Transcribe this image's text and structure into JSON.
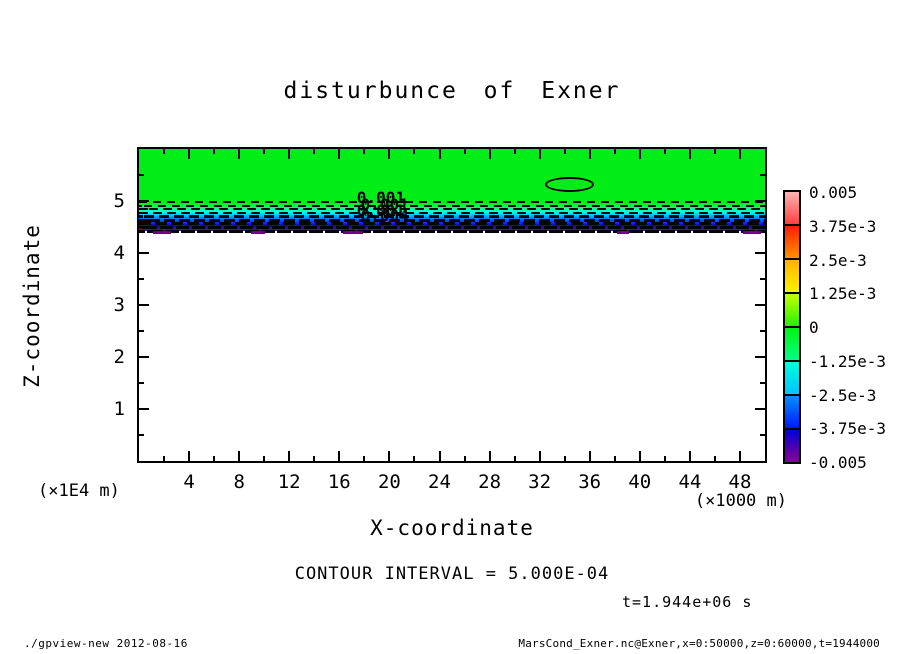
{
  "header": {
    "title": "disturbunce of Exner"
  },
  "chart_data": {
    "type": "heatmap",
    "title": "disturbunce of Exner",
    "xlabel": "X-coordinate",
    "x_units": "(×1000 m)",
    "ylabel": "Z-coordinate",
    "y_units": "(×1E4 m)",
    "xlim": [
      0,
      50
    ],
    "ylim": [
      0,
      6
    ],
    "x_major_ticks": [
      4,
      8,
      12,
      16,
      20,
      24,
      28,
      32,
      36,
      40,
      44,
      48
    ],
    "x_minor_step": 2,
    "y_major_ticks": [
      1,
      2,
      3,
      4,
      5
    ],
    "y_minor_step": 0.5,
    "grid": false,
    "annotations": {
      "contour_interval": "CONTOUR INTERVAL = 5.000E-04",
      "time": "t=1.944e+06 s",
      "contour_labels": [
        {
          "text": "0.001",
          "x": 17.4,
          "z": 5.03
        },
        {
          "text": "0.001",
          "x": 17.7,
          "z": 4.9
        },
        {
          "text": "0.001",
          "x": 17.4,
          "z": 4.78
        },
        {
          "text": "0.004",
          "x": 17.7,
          "z": 4.7
        }
      ]
    },
    "field": {
      "description": "Exner disturbance near 0 (green) for z above ~5.0; thin negative layer 4.4<z<5.0 with dashed contours descending to -0.005 (purple) at its base; unshaded (white) below z~4.4",
      "background_color": "#00ee16",
      "gradient_layer": {
        "z_top": 5.0,
        "z_bottom": 4.42,
        "colors": [
          "#00f411",
          "#00ff55",
          "#00ffaa",
          "#00ffee",
          "#00ccff",
          "#0092ff",
          "#005aff",
          "#2222ff",
          "#0000cc",
          "#5500aa",
          "#770088"
        ]
      },
      "zero_contour_ellipse": {
        "x": 34.2,
        "z": 5.35,
        "rx": 1.8,
        "rz": 0.11
      },
      "dashed_contour_rows": 9
    },
    "colorbar": {
      "labels": [
        "0.005",
        "3.75e-3",
        "2.5e-3",
        "1.25e-3",
        "0",
        "-1.25e-3",
        "-2.5e-3",
        "-3.75e-3",
        "-0.005"
      ],
      "cells": [
        [
          "#ffb3b3",
          "#ff4040"
        ],
        [
          "#ff1e00",
          "#ff9100"
        ],
        [
          "#ffb300",
          "#fff200"
        ],
        [
          "#c8ff00",
          "#22f400"
        ],
        [
          "#00f411",
          "#00ff88"
        ],
        [
          "#00ffd9",
          "#00c3ff"
        ],
        [
          "#0092ff",
          "#0016ff"
        ],
        [
          "#0000d9",
          "#8b0090"
        ]
      ]
    }
  },
  "footer": {
    "left": "./gpview-new  2012-08-16",
    "right": "MarsCond_Exner.nc@Exner,x=0:50000,z=0:60000,t=1944000"
  }
}
